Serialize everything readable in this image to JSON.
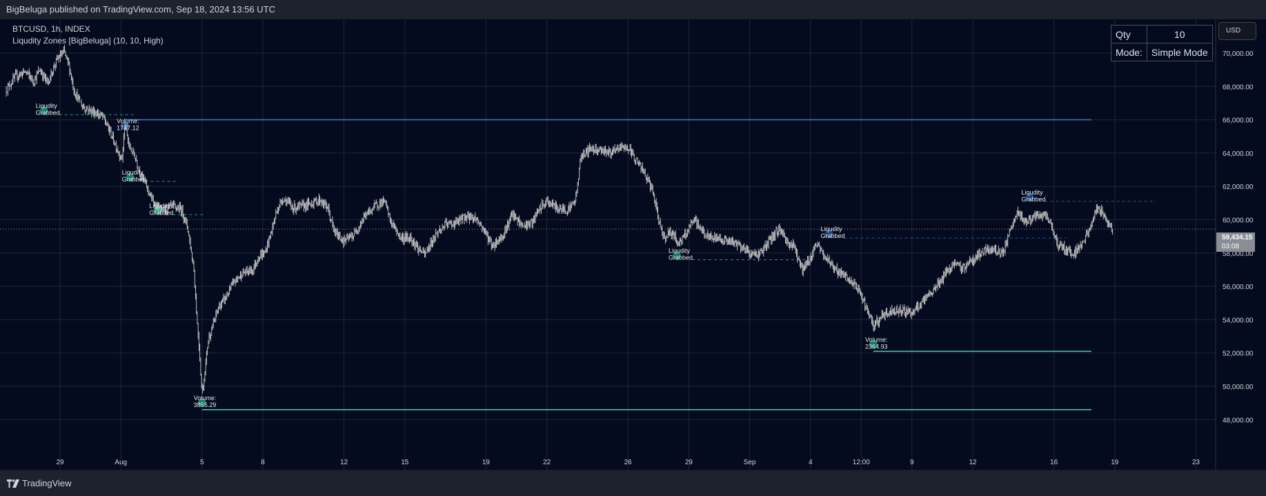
{
  "topbar": {
    "text": "BigBeluga published on TradingView.com, Sep 18, 2024 13:56 UTC"
  },
  "legend": {
    "symbol": "BTCUSD, 1h, INDEX",
    "indicator": "Liqudity Zones [BigBeluga] (10, 10, High)"
  },
  "table": {
    "qty_label": "Qty",
    "qty_value": "10",
    "mode_label": "Mode:",
    "mode_value": "Simple Mode"
  },
  "currency_button": "USD",
  "current_price": {
    "price": "59,434.15",
    "countdown": "03:08"
  },
  "footer": {
    "brand": "TradingView"
  },
  "colors": {
    "background": "#050b1e",
    "resistance": "#2f78c9",
    "support": "#1ed8a2",
    "candle": "#d6d6d6",
    "grid": "#1f2536",
    "text": "#d1d4dc"
  },
  "chart_data": {
    "type": "candlestick",
    "symbol": "BTCUSD",
    "timeframe": "1h",
    "ylim": [
      46500,
      72200
    ],
    "yticks": [
      48000,
      50000,
      52000,
      54000,
      56000,
      58000,
      60000,
      62000,
      64000,
      66000,
      68000,
      70000
    ],
    "ytick_labels": [
      "48,000.00",
      "50,000.00",
      "52,000.00",
      "54,000.00",
      "56,000.00",
      "58,000.00",
      "60,000.00",
      "62,000.00",
      "64,000.00",
      "66,000.00",
      "68,000.00",
      "70,000.00"
    ],
    "xticks": [
      {
        "day": 0,
        "label": "29"
      },
      {
        "day": 3,
        "label": "Aug"
      },
      {
        "day": 7,
        "label": "5"
      },
      {
        "day": 10,
        "label": "8"
      },
      {
        "day": 14,
        "label": "12"
      },
      {
        "day": 17,
        "label": "15"
      },
      {
        "day": 21,
        "label": "19"
      },
      {
        "day": 24,
        "label": "22"
      },
      {
        "day": 28,
        "label": "26"
      },
      {
        "day": 31,
        "label": "29"
      },
      {
        "day": 34,
        "label": "Sep"
      },
      {
        "day": 37,
        "label": "4"
      },
      {
        "day": 39.5,
        "label": "12:00"
      },
      {
        "day": 42,
        "label": "9"
      },
      {
        "day": 45,
        "label": "12"
      },
      {
        "day": 49,
        "label": "16"
      },
      {
        "day": 52,
        "label": "19"
      },
      {
        "day": 56,
        "label": "23"
      }
    ],
    "price_path": [
      [
        -2.65,
        67800
      ],
      [
        -2.2,
        68600
      ],
      [
        -1.7,
        68900
      ],
      [
        -1.3,
        68300
      ],
      [
        -1.0,
        69000
      ],
      [
        -0.6,
        68200
      ],
      [
        -0.2,
        69500
      ],
      [
        0.2,
        70100
      ],
      [
        0.45,
        69200
      ],
      [
        0.7,
        67700
      ],
      [
        1.1,
        66800
      ],
      [
        1.6,
        66500
      ],
      [
        2.1,
        66200
      ],
      [
        2.5,
        65200
      ],
      [
        2.9,
        64000
      ],
      [
        3.05,
        63600
      ],
      [
        3.2,
        65800
      ],
      [
        3.4,
        64400
      ],
      [
        3.7,
        63800
      ],
      [
        3.95,
        62800
      ],
      [
        4.3,
        61900
      ],
      [
        4.6,
        61000
      ],
      [
        5.0,
        60500
      ],
      [
        5.5,
        60800
      ],
      [
        6.0,
        60600
      ],
      [
        6.3,
        59500
      ],
      [
        6.6,
        57000
      ],
      [
        6.75,
        54000
      ],
      [
        6.85,
        52500
      ],
      [
        7.0,
        49500
      ],
      [
        7.15,
        51000
      ],
      [
        7.3,
        52800
      ],
      [
        7.5,
        53500
      ],
      [
        7.8,
        54700
      ],
      [
        8.2,
        55400
      ],
      [
        8.6,
        56300
      ],
      [
        9.0,
        56800
      ],
      [
        9.5,
        57000
      ],
      [
        9.8,
        57800
      ],
      [
        10.1,
        58000
      ],
      [
        10.4,
        59200
      ],
      [
        10.7,
        60600
      ],
      [
        11.0,
        61300
      ],
      [
        11.5,
        60700
      ],
      [
        12.2,
        60900
      ],
      [
        12.8,
        61200
      ],
      [
        13.2,
        60700
      ],
      [
        13.5,
        59300
      ],
      [
        14.0,
        58700
      ],
      [
        14.5,
        59100
      ],
      [
        15.0,
        60200
      ],
      [
        15.6,
        60900
      ],
      [
        16.0,
        61100
      ],
      [
        16.3,
        59900
      ],
      [
        16.8,
        58900
      ],
      [
        17.3,
        58900
      ],
      [
        17.7,
        58200
      ],
      [
        18.0,
        57900
      ],
      [
        18.5,
        59100
      ],
      [
        19.0,
        59700
      ],
      [
        19.5,
        59800
      ],
      [
        20.0,
        60200
      ],
      [
        20.5,
        60100
      ],
      [
        21.0,
        59200
      ],
      [
        21.3,
        58400
      ],
      [
        21.8,
        59000
      ],
      [
        22.3,
        60300
      ],
      [
        22.8,
        59600
      ],
      [
        23.3,
        59800
      ],
      [
        23.6,
        60600
      ],
      [
        24.0,
        61100
      ],
      [
        24.5,
        60700
      ],
      [
        25.0,
        60600
      ],
      [
        25.4,
        61100
      ],
      [
        25.7,
        63900
      ],
      [
        26.2,
        64300
      ],
      [
        26.7,
        64200
      ],
      [
        27.2,
        64000
      ],
      [
        27.7,
        64400
      ],
      [
        28.0,
        64300
      ],
      [
        28.4,
        63600
      ],
      [
        28.8,
        62800
      ],
      [
        29.2,
        61800
      ],
      [
        29.5,
        60000
      ],
      [
        29.8,
        58900
      ],
      [
        30.1,
        59300
      ],
      [
        30.5,
        58600
      ],
      [
        30.8,
        59000
      ],
      [
        31.0,
        59500
      ],
      [
        31.3,
        60000
      ],
      [
        31.6,
        59400
      ],
      [
        32.0,
        58900
      ],
      [
        32.5,
        58900
      ],
      [
        33.0,
        58700
      ],
      [
        33.5,
        58500
      ],
      [
        34.0,
        58000
      ],
      [
        34.4,
        57900
      ],
      [
        34.8,
        58400
      ],
      [
        35.2,
        59100
      ],
      [
        35.5,
        59500
      ],
      [
        35.8,
        58700
      ],
      [
        36.2,
        58400
      ],
      [
        36.6,
        57000
      ],
      [
        36.9,
        57500
      ],
      [
        37.3,
        58600
      ],
      [
        37.6,
        57900
      ],
      [
        38.0,
        57400
      ],
      [
        38.4,
        56800
      ],
      [
        38.8,
        56500
      ],
      [
        39.2,
        56000
      ],
      [
        39.5,
        55500
      ],
      [
        39.8,
        54500
      ],
      [
        40.1,
        53600
      ],
      [
        40.5,
        54200
      ],
      [
        41.0,
        54500
      ],
      [
        41.5,
        54600
      ],
      [
        42.0,
        54400
      ],
      [
        42.5,
        55000
      ],
      [
        43.0,
        55700
      ],
      [
        43.5,
        56500
      ],
      [
        44.0,
        57300
      ],
      [
        44.5,
        57100
      ],
      [
        45.0,
        57600
      ],
      [
        45.5,
        58100
      ],
      [
        46.0,
        58200
      ],
      [
        46.5,
        58000
      ],
      [
        46.9,
        59500
      ],
      [
        47.2,
        60400
      ],
      [
        47.6,
        59900
      ],
      [
        48.0,
        60100
      ],
      [
        48.5,
        60300
      ],
      [
        48.9,
        59600
      ],
      [
        49.2,
        58500
      ],
      [
        49.6,
        58200
      ],
      [
        50.0,
        58000
      ],
      [
        50.4,
        58600
      ],
      [
        50.8,
        59500
      ],
      [
        51.1,
        60700
      ],
      [
        51.4,
        60400
      ],
      [
        51.7,
        59800
      ],
      [
        51.9,
        59434
      ]
    ],
    "zones": [
      {
        "type": "resistance",
        "price": 66000,
        "x_start": 3.2,
        "x_end": 60,
        "label_line1": "Volume:",
        "label_line2": "1747.12"
      },
      {
        "type": "support",
        "price": 48600,
        "x_start": 7.0,
        "x_end": 60,
        "label_line1": "Volume:",
        "label_line2": "3855.29"
      },
      {
        "type": "support",
        "price": 52100,
        "x_start": 40.1,
        "x_end": 60,
        "label_line1": "Volume:",
        "label_line2": "2364.93"
      }
    ],
    "grabbed": [
      {
        "x": -1.2,
        "price": 66300,
        "label_line1": "Liqudity",
        "label_line2": "Grabbed",
        "dash_to": 0.9,
        "color": "green"
      },
      {
        "x": 3.05,
        "price": 62300,
        "label_line1": "Liqudity",
        "label_line2": "Grabbed",
        "dash_to": 3.05,
        "color": "green"
      },
      {
        "x": 4.4,
        "price": 60300,
        "label_line1": "Liqudity",
        "label_line2": "Grabbed",
        "dash_to": 4.4,
        "color": "green"
      },
      {
        "x": 30.0,
        "price": 57600,
        "label_line1": "Liqudity",
        "label_line2": "Grabbed",
        "dash_to": 34.4,
        "color": "green"
      },
      {
        "x": 37.5,
        "price": 58900,
        "label_line1": "Liqudity",
        "label_line2": "Grabbed",
        "dash_to": 46.9,
        "color": "blue"
      },
      {
        "x": 47.4,
        "price": 61100,
        "label_line1": "Liqudity",
        "label_line2": "Grabbed",
        "dash_to": 51.3,
        "color": "blue"
      }
    ]
  }
}
